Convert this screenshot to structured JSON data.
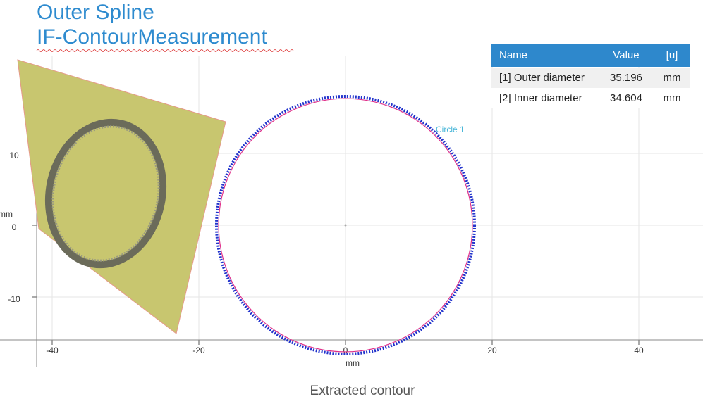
{
  "title": {
    "line1": "Outer Spline",
    "line2": "IF-ContourMeasurement"
  },
  "table": {
    "headers": [
      "Name",
      "Value",
      "[u]"
    ],
    "rows": [
      [
        "[1] Outer diameter",
        35.196,
        "mm"
      ],
      [
        "[2] Inner diameter",
        34.604,
        "mm"
      ]
    ]
  },
  "plot": {
    "x_axis": {
      "label": "mm",
      "ticks": [
        -40,
        -20,
        0,
        20,
        40
      ]
    },
    "y_axis": {
      "label": "mm",
      "ticks": [
        10,
        0,
        -10
      ]
    },
    "annotation": "Circle 1"
  },
  "caption": "Extracted contour"
}
